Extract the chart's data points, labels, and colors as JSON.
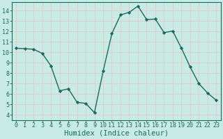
{
  "x": [
    0,
    1,
    2,
    3,
    4,
    5,
    6,
    7,
    8,
    9,
    10,
    11,
    12,
    13,
    14,
    15,
    16,
    17,
    18,
    19,
    20,
    21,
    22,
    23
  ],
  "y": [
    10.4,
    10.35,
    10.3,
    9.9,
    8.7,
    6.3,
    6.5,
    5.2,
    5.1,
    4.2,
    8.2,
    11.8,
    13.6,
    13.85,
    14.45,
    13.15,
    13.2,
    11.9,
    12.05,
    10.4,
    8.6,
    7.0,
    6.1,
    5.4
  ],
  "line_color": "#1a6b5a",
  "marker": "D",
  "marker_size": 2.2,
  "bg_color": "#c8ebe5",
  "grid_color": "#e8c8c8",
  "xlabel": "Humidex (Indice chaleur)",
  "xlim": [
    -0.5,
    23.5
  ],
  "ylim": [
    3.5,
    14.8
  ],
  "xticks": [
    0,
    1,
    2,
    3,
    4,
    5,
    6,
    7,
    8,
    9,
    10,
    11,
    12,
    13,
    14,
    15,
    16,
    17,
    18,
    19,
    20,
    21,
    22,
    23
  ],
  "yticks": [
    4,
    5,
    6,
    7,
    8,
    9,
    10,
    11,
    12,
    13,
    14
  ],
  "tick_color": "#1a6b5a",
  "tick_fontsize": 6,
  "xlabel_fontsize": 7.5,
  "spine_color": "#1a6b5a"
}
